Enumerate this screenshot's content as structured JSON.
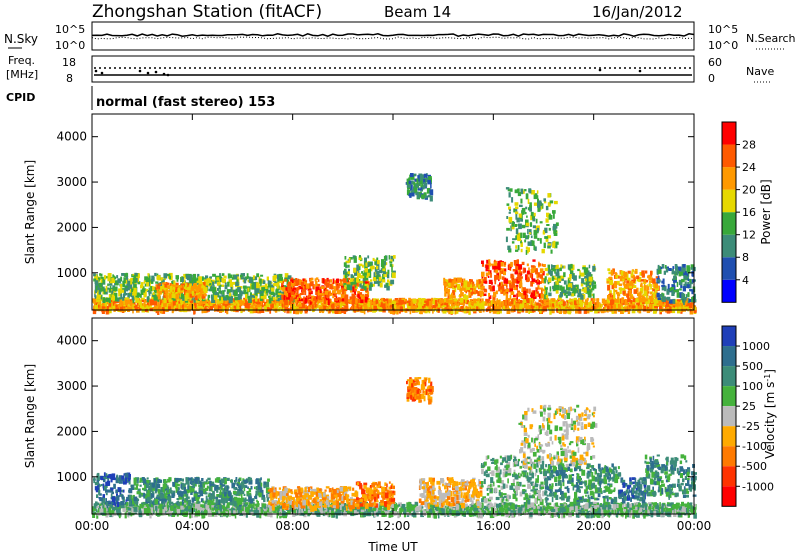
{
  "header": {
    "title": "Zhongshan Station (fitACF)",
    "beam": "Beam 14",
    "date": "16/Jan/2012"
  },
  "nsky_panel": {
    "left_label": "N.Sky",
    "left_ticks": [
      "10^5",
      "10^0"
    ],
    "right_label": "N.Search",
    "right_ticks": [
      "10^5",
      "10^0"
    ]
  },
  "freq_panel": {
    "left_label_1": "Freq.",
    "left_label_2": "[MHz]",
    "left_ticks": [
      "18",
      "8"
    ],
    "right_label": "Nave",
    "right_ticks": [
      "60",
      "0"
    ]
  },
  "cpid_panel": {
    "label": "CPID",
    "text": "normal (fast stereo) 153"
  },
  "colors": {
    "power_scale": [
      "#0000ff",
      "#1f4fb0",
      "#3c8c78",
      "#38a83a",
      "#e6d800",
      "#ff9900",
      "#ff5a00",
      "#ff0000"
    ],
    "velocity_scale": [
      "#1f3fb8",
      "#2e6e8e",
      "#3c8c78",
      "#45b23c",
      "#bbbbbb",
      "#ffaa00",
      "#ff7a00",
      "#ff3300",
      "#ff0000"
    ]
  },
  "chart_data": [
    {
      "type": "heatmap",
      "title": "",
      "xlabel": "",
      "ylabel": "Slant Range [km]",
      "xlim": [
        "00:00",
        "24:00"
      ],
      "ylim": [
        180,
        4500
      ],
      "x_ticks": [
        "00:00",
        "04:00",
        "08:00",
        "12:00",
        "16:00",
        "20:00",
        "00:00"
      ],
      "y_ticks": [
        "1000",
        "2000",
        "3000",
        "4000"
      ],
      "colorbar": {
        "label": "Power [dB]",
        "ticks": [
          "4",
          "8",
          "12",
          "16",
          "20",
          "24",
          "28"
        ],
        "range": [
          0,
          30
        ]
      },
      "echo_regions": [
        {
          "t": [
            0.0,
            24.0
          ],
          "range_km": [
            200,
            450
          ],
          "value": 22
        },
        {
          "t": [
            0.0,
            8.0
          ],
          "range_km": [
            450,
            1000
          ],
          "value": 12
        },
        {
          "t": [
            2.5,
            4.5
          ],
          "range_km": [
            500,
            800
          ],
          "value": 22
        },
        {
          "t": [
            7.5,
            11.0
          ],
          "range_km": [
            400,
            900
          ],
          "value": 24
        },
        {
          "t": [
            10.0,
            12.0
          ],
          "range_km": [
            700,
            1400
          ],
          "value": 14
        },
        {
          "t": [
            12.5,
            13.5
          ],
          "range_km": [
            2700,
            3200
          ],
          "value": 8
        },
        {
          "t": [
            14.0,
            15.5
          ],
          "range_km": [
            500,
            900
          ],
          "value": 20
        },
        {
          "t": [
            15.5,
            18.0
          ],
          "range_km": [
            500,
            1300
          ],
          "value": 24
        },
        {
          "t": [
            16.5,
            18.5
          ],
          "range_km": [
            1500,
            2900
          ],
          "value": 12
        },
        {
          "t": [
            18.0,
            20.0
          ],
          "range_km": [
            500,
            1200
          ],
          "value": 12
        },
        {
          "t": [
            20.5,
            22.5
          ],
          "range_km": [
            400,
            1100
          ],
          "value": 22
        },
        {
          "t": [
            22.5,
            24.0
          ],
          "range_km": [
            400,
            1200
          ],
          "value": 8
        }
      ]
    },
    {
      "type": "heatmap",
      "title": "",
      "xlabel": "Time UT",
      "ylabel": "Slant Range [km]",
      "xlim": [
        "00:00",
        "24:00"
      ],
      "ylim": [
        180,
        4500
      ],
      "x_ticks": [
        "00:00",
        "04:00",
        "08:00",
        "12:00",
        "16:00",
        "20:00",
        "00:00"
      ],
      "y_ticks": [
        "1000",
        "2000",
        "3000",
        "4000"
      ],
      "colorbar": {
        "label": "Velocity [m s",
        "label_exponent": "-1",
        "label_close": "]",
        "ticks": [
          "1000",
          "500",
          "100",
          "25",
          "-25",
          "-100",
          "-500",
          "-1000"
        ]
      },
      "echo_regions": [
        {
          "t": [
            0.0,
            24.0
          ],
          "range_km": [
            200,
            450
          ],
          "value": 80
        },
        {
          "t": [
            0.0,
            1.5
          ],
          "range_km": [
            400,
            1100
          ],
          "value": 800
        },
        {
          "t": [
            1.5,
            7.0
          ],
          "range_km": [
            450,
            1000
          ],
          "value": 150
        },
        {
          "t": [
            7.0,
            10.5
          ],
          "range_km": [
            350,
            800
          ],
          "value": -60
        },
        {
          "t": [
            10.5,
            12.0
          ],
          "range_km": [
            400,
            900
          ],
          "value": -300
        },
        {
          "t": [
            12.5,
            13.5
          ],
          "range_km": [
            2700,
            3200
          ],
          "value": -300
        },
        {
          "t": [
            13.0,
            15.5
          ],
          "range_km": [
            400,
            1000
          ],
          "value": -80
        },
        {
          "t": [
            15.5,
            18.0
          ],
          "range_km": [
            500,
            1500
          ],
          "value": 60
        },
        {
          "t": [
            17.0,
            20.0
          ],
          "range_km": [
            1200,
            2600
          ],
          "value": 10
        },
        {
          "t": [
            18.0,
            21.0
          ],
          "range_km": [
            500,
            1300
          ],
          "value": 150
        },
        {
          "t": [
            21.0,
            22.0
          ],
          "range_km": [
            500,
            1000
          ],
          "value": 800
        },
        {
          "t": [
            22.0,
            24.0
          ],
          "range_km": [
            600,
            1500
          ],
          "value": 150
        }
      ]
    }
  ]
}
